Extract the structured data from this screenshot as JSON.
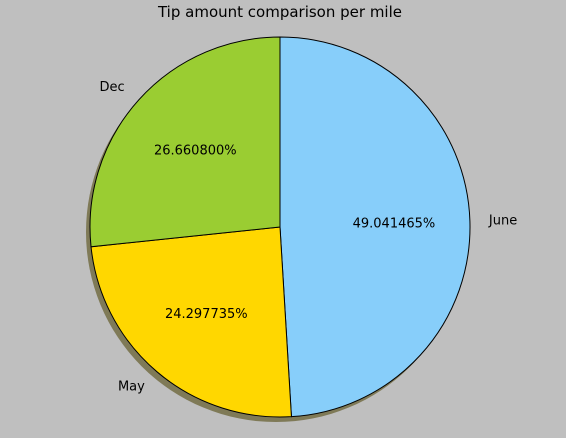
{
  "chart_data": {
    "type": "pie",
    "title": "Tip amount comparison per mile",
    "slices": [
      {
        "label": "June",
        "value": 49.041465,
        "pct_label": "49.041465%",
        "color": "#87CEFA"
      },
      {
        "label": "May",
        "value": 24.297735,
        "pct_label": "24.297735%",
        "color": "#FFD700"
      },
      {
        "label": "Dec",
        "value": 26.6608,
        "pct_label": "26.660800%",
        "color": "#9ACD32"
      }
    ],
    "start_angle_deg": 90,
    "direction": "clockwise",
    "shadow": true,
    "shadow_color": "#7f7a57",
    "background_color": "#bfbfbf"
  }
}
